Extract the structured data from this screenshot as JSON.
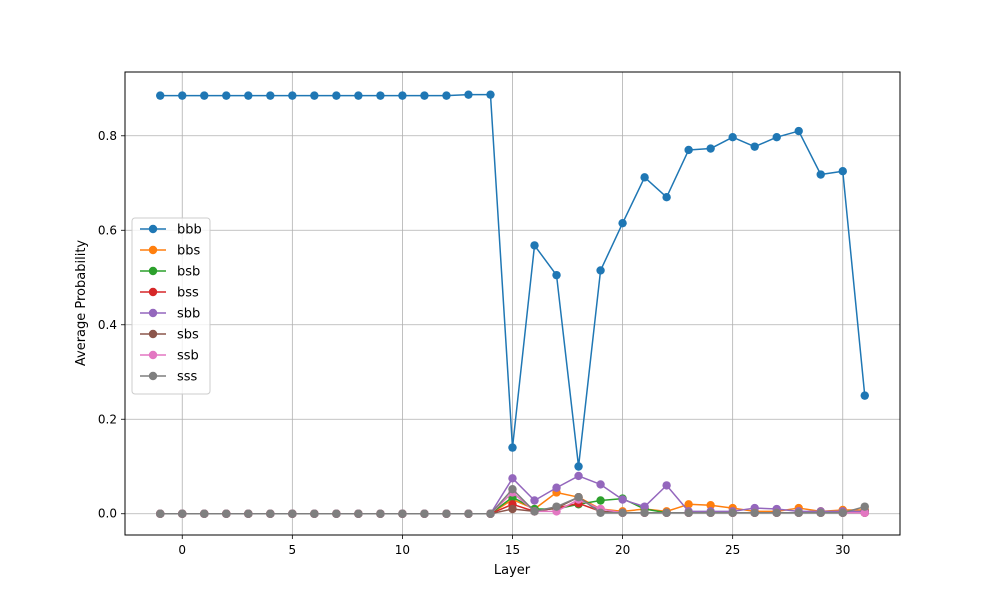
{
  "chart_data": {
    "type": "line",
    "title": "",
    "xlabel": "Layer",
    "ylabel": "Average Probability",
    "xlim": [
      -2.6,
      32.6
    ],
    "ylim": [
      -0.045,
      0.935
    ],
    "xticks": [
      0,
      5,
      10,
      15,
      20,
      25,
      30
    ],
    "yticks": [
      0.0,
      0.2,
      0.4,
      0.6,
      0.8
    ],
    "xtick_labels": [
      "0",
      "5",
      "10",
      "15",
      "20",
      "25",
      "30"
    ],
    "ytick_labels": [
      "0.0",
      "0.2",
      "0.4",
      "0.6",
      "0.8"
    ],
    "grid": true,
    "legend_position": "center-left",
    "x": [
      -1,
      0,
      1,
      2,
      3,
      4,
      5,
      6,
      7,
      8,
      9,
      10,
      11,
      12,
      13,
      14,
      15,
      16,
      17,
      18,
      19,
      20,
      21,
      22,
      23,
      24,
      25,
      26,
      27,
      28,
      29,
      30,
      31
    ],
    "series": [
      {
        "name": "bbb",
        "color": "#1f77b4",
        "values": [
          0.885,
          0.885,
          0.885,
          0.885,
          0.885,
          0.885,
          0.885,
          0.885,
          0.885,
          0.885,
          0.885,
          0.885,
          0.885,
          0.885,
          0.887,
          0.887,
          0.14,
          0.568,
          0.505,
          0.1,
          0.515,
          0.615,
          0.712,
          0.67,
          0.77,
          0.773,
          0.797,
          0.777,
          0.797,
          0.81,
          0.718,
          0.725,
          0.25
        ]
      },
      {
        "name": "bbs",
        "color": "#ff7f0e",
        "values": [
          0,
          0,
          0,
          0,
          0,
          0,
          0,
          0,
          0,
          0,
          0,
          0,
          0,
          0,
          0,
          0,
          0.03,
          0.01,
          0.045,
          0.035,
          0.01,
          0.005,
          0.01,
          0.005,
          0.02,
          0.018,
          0.012,
          0.005,
          0.005,
          0.012,
          0.005,
          0.008,
          0.008
        ]
      },
      {
        "name": "bsb",
        "color": "#2ca02c",
        "values": [
          0,
          0,
          0,
          0,
          0,
          0,
          0,
          0,
          0,
          0,
          0,
          0,
          0,
          0,
          0,
          0,
          0.035,
          0.01,
          0.01,
          0.02,
          0.028,
          0.032,
          0.01,
          0.002,
          0.002,
          0.002,
          0.002,
          0.002,
          0.002,
          0.002,
          0.002,
          0.002,
          0.005
        ]
      },
      {
        "name": "bss",
        "color": "#d62728",
        "values": [
          0,
          0,
          0,
          0,
          0,
          0,
          0,
          0,
          0,
          0,
          0,
          0,
          0,
          0,
          0,
          0,
          0.02,
          0.005,
          0.012,
          0.022,
          0.005,
          0.002,
          0.002,
          0.002,
          0.002,
          0.002,
          0.002,
          0.002,
          0.002,
          0.002,
          0.002,
          0.002,
          0.002
        ]
      },
      {
        "name": "sbb",
        "color": "#9467bd",
        "values": [
          0,
          0,
          0,
          0,
          0,
          0,
          0,
          0,
          0,
          0,
          0,
          0,
          0,
          0,
          0,
          0,
          0.075,
          0.028,
          0.055,
          0.08,
          0.062,
          0.03,
          0.015,
          0.06,
          0.005,
          0.005,
          0.005,
          0.012,
          0.01,
          0.005,
          0.005,
          0.005,
          0.005
        ]
      },
      {
        "name": "sbs",
        "color": "#8c564b",
        "values": [
          0,
          0,
          0,
          0,
          0,
          0,
          0,
          0,
          0,
          0,
          0,
          0,
          0,
          0,
          0,
          0,
          0.01,
          0.005,
          0.012,
          0.035,
          0.005,
          0.002,
          0.002,
          0.002,
          0.002,
          0.002,
          0.002,
          0.002,
          0.002,
          0.002,
          0.002,
          0.002,
          0.002
        ]
      },
      {
        "name": "ssb",
        "color": "#e377c2",
        "values": [
          0,
          0,
          0,
          0,
          0,
          0,
          0,
          0,
          0,
          0,
          0,
          0,
          0,
          0,
          0,
          0,
          0.045,
          0.005,
          0.005,
          0.03,
          0.01,
          0.002,
          0.002,
          0.002,
          0.002,
          0.002,
          0.002,
          0.002,
          0.002,
          0.002,
          0.002,
          0.002,
          0.002
        ]
      },
      {
        "name": "sss",
        "color": "#7f7f7f",
        "values": [
          0,
          0,
          0,
          0,
          0,
          0,
          0,
          0,
          0,
          0,
          0,
          0,
          0,
          0,
          0,
          0,
          0.052,
          0.005,
          0.015,
          0.035,
          0.002,
          0.002,
          0.002,
          0.002,
          0.002,
          0.002,
          0.002,
          0.002,
          0.002,
          0.002,
          0.002,
          0.002,
          0.015
        ]
      }
    ]
  }
}
